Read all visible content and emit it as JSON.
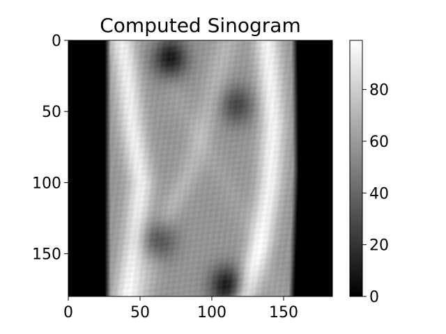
{
  "chart_data": {
    "type": "heatmap",
    "title": "Computed Sinogram",
    "xlabel": "",
    "ylabel": "",
    "x_range": [
      0,
      184
    ],
    "y_range": [
      0,
      180
    ],
    "y_inverted": true,
    "x_ticks": [
      0,
      50,
      100,
      150
    ],
    "y_ticks": [
      0,
      50,
      100,
      150
    ],
    "colormap": "gray",
    "colorbar": {
      "range": [
        0,
        99
      ],
      "ticks": [
        0,
        20,
        40,
        60,
        80
      ]
    },
    "grid": false,
    "description_values": {
      "signal_left_edge_by_row": [
        [
          0,
          27
        ],
        [
          90,
          27
        ],
        [
          180,
          27
        ]
      ],
      "signal_right_edge_by_row": [
        [
          0,
          157
        ],
        [
          90,
          158
        ],
        [
          180,
          155
        ]
      ],
      "bright_ridges": [
        {
          "points": [
            [
              0,
              37
            ],
            [
              20,
              40
            ],
            [
              60,
              44
            ],
            [
              100,
              50
            ],
            [
              140,
              46
            ],
            [
              180,
              40
            ]
          ],
          "value": 92
        },
        {
          "points": [
            [
              0,
              138
            ],
            [
              25,
              140
            ],
            [
              60,
              142
            ],
            [
              100,
              140
            ],
            [
              140,
              134
            ],
            [
              180,
              122
            ]
          ],
          "value": 94
        },
        {
          "points": [
            [
              0,
              110
            ],
            [
              40,
              100
            ],
            [
              90,
              85
            ],
            [
              130,
              65
            ],
            [
              180,
              50
            ]
          ],
          "value": 70
        },
        {
          "points": [
            [
              0,
              60
            ],
            [
              50,
              80
            ],
            [
              100,
              110
            ],
            [
              150,
              135
            ],
            [
              180,
              145
            ]
          ],
          "value": 62
        }
      ],
      "dark_blobs": [
        {
          "x": 70,
          "y": 12,
          "value": 8
        },
        {
          "x": 117,
          "y": 45,
          "value": 28
        },
        {
          "x": 62,
          "y": 140,
          "value": 22
        },
        {
          "x": 110,
          "y": 172,
          "value": 10
        }
      ],
      "mean_level": 58
    }
  }
}
